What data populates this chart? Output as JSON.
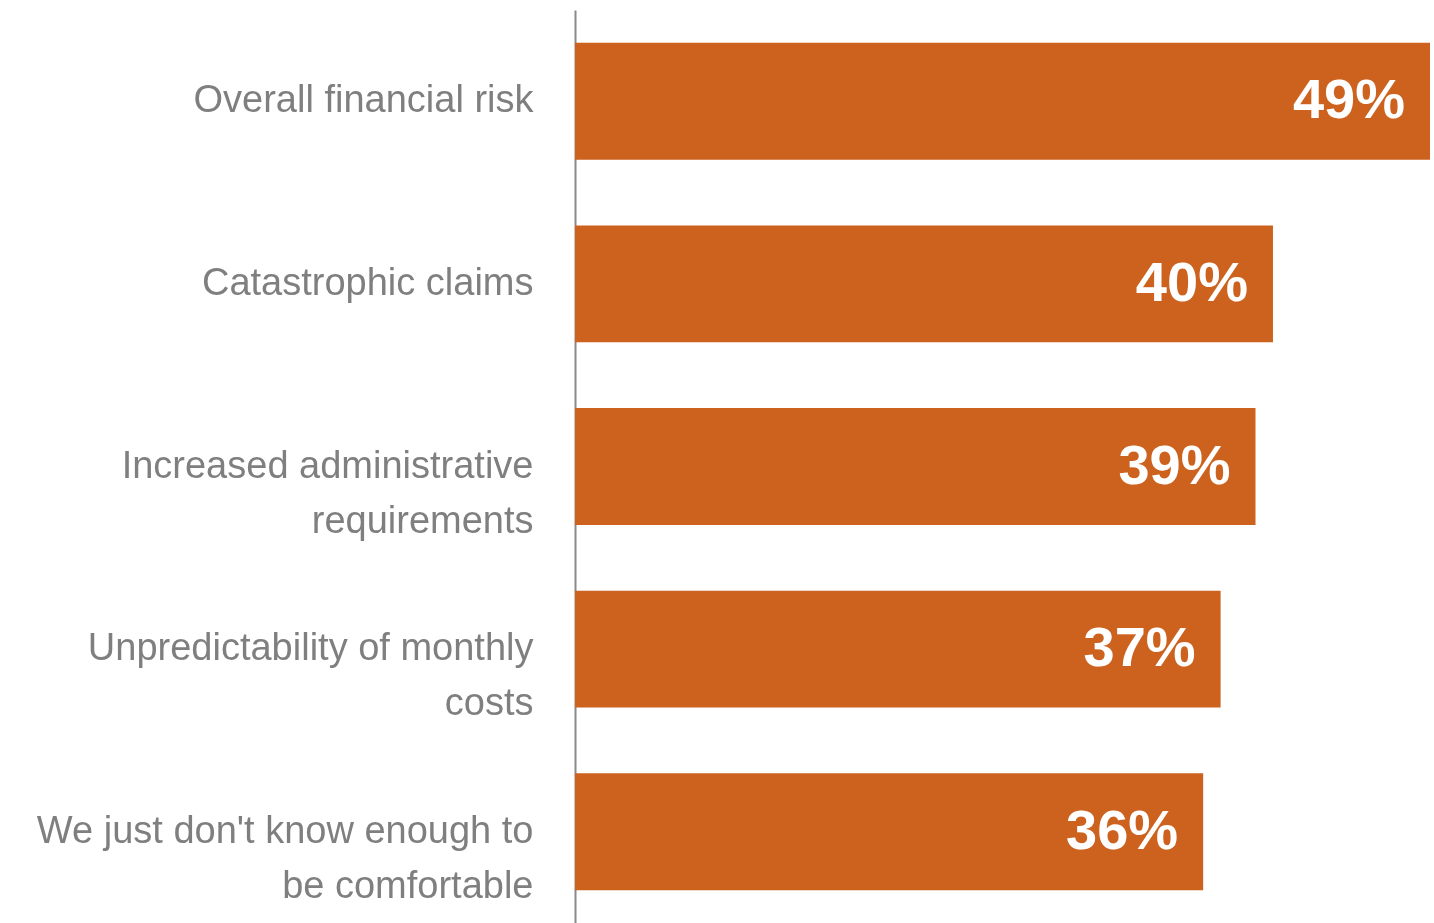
{
  "chart_data": {
    "type": "bar",
    "orientation": "horizontal",
    "categories": [
      "Overall financial risk",
      "Catastrophic claims",
      "Increased administrative requirements",
      "Unpredictability of monthly costs",
      "We just don't know enough to be comfortable"
    ],
    "values": [
      49,
      40,
      39,
      37,
      36
    ],
    "value_labels": [
      "49%",
      "40%",
      "39%",
      "37%",
      "36%"
    ],
    "color": "#cd621e"
  }
}
